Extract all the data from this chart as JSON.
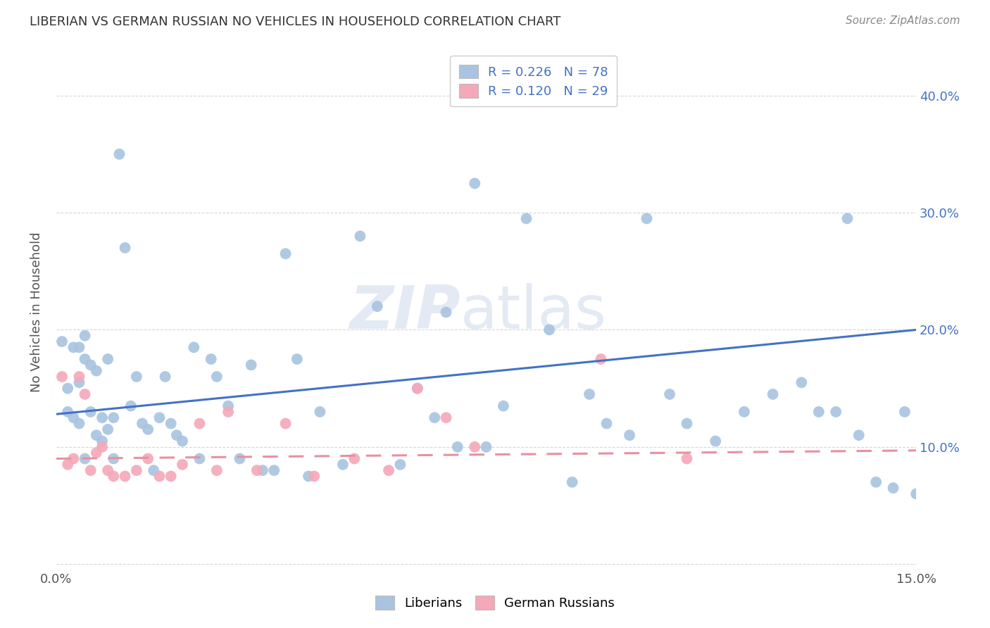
{
  "title": "LIBERIAN VS GERMAN RUSSIAN NO VEHICLES IN HOUSEHOLD CORRELATION CHART",
  "source": "Source: ZipAtlas.com",
  "ylabel": "No Vehicles in Household",
  "xlim": [
    0.0,
    0.15
  ],
  "ylim": [
    -0.005,
    0.435
  ],
  "liberian_color": "#a8c4e0",
  "german_russian_color": "#f4a8b8",
  "liberian_line_color": "#4472c4",
  "german_russian_line_color": "#e8909f",
  "watermark_zip": "ZIP",
  "watermark_atlas": "atlas",
  "legend1_text": "R = 0.226   N = 78",
  "legend2_text": "R = 0.120   N = 29",
  "bottom_legend1": "Liberians",
  "bottom_legend2": "German Russians",
  "liberian_x": [
    0.001,
    0.002,
    0.002,
    0.003,
    0.003,
    0.004,
    0.004,
    0.004,
    0.005,
    0.005,
    0.005,
    0.006,
    0.006,
    0.007,
    0.007,
    0.008,
    0.008,
    0.009,
    0.009,
    0.01,
    0.01,
    0.011,
    0.012,
    0.013,
    0.014,
    0.015,
    0.016,
    0.017,
    0.018,
    0.019,
    0.02,
    0.021,
    0.022,
    0.024,
    0.025,
    0.027,
    0.028,
    0.03,
    0.032,
    0.034,
    0.036,
    0.038,
    0.04,
    0.042,
    0.044,
    0.046,
    0.05,
    0.053,
    0.056,
    0.06,
    0.063,
    0.066,
    0.068,
    0.07,
    0.073,
    0.075,
    0.078,
    0.082,
    0.086,
    0.09,
    0.093,
    0.096,
    0.1,
    0.103,
    0.107,
    0.11,
    0.115,
    0.12,
    0.125,
    0.13,
    0.133,
    0.136,
    0.138,
    0.14,
    0.143,
    0.146,
    0.148,
    0.15
  ],
  "liberian_y": [
    0.19,
    0.13,
    0.15,
    0.185,
    0.125,
    0.155,
    0.12,
    0.185,
    0.175,
    0.195,
    0.09,
    0.17,
    0.13,
    0.165,
    0.11,
    0.125,
    0.105,
    0.175,
    0.115,
    0.125,
    0.09,
    0.35,
    0.27,
    0.135,
    0.16,
    0.12,
    0.115,
    0.08,
    0.125,
    0.16,
    0.12,
    0.11,
    0.105,
    0.185,
    0.09,
    0.175,
    0.16,
    0.135,
    0.09,
    0.17,
    0.08,
    0.08,
    0.265,
    0.175,
    0.075,
    0.13,
    0.085,
    0.28,
    0.22,
    0.085,
    0.15,
    0.125,
    0.215,
    0.1,
    0.325,
    0.1,
    0.135,
    0.295,
    0.2,
    0.07,
    0.145,
    0.12,
    0.11,
    0.295,
    0.145,
    0.12,
    0.105,
    0.13,
    0.145,
    0.155,
    0.13,
    0.13,
    0.295,
    0.11,
    0.07,
    0.065,
    0.13,
    0.06
  ],
  "german_russian_x": [
    0.001,
    0.002,
    0.003,
    0.004,
    0.005,
    0.006,
    0.007,
    0.008,
    0.009,
    0.01,
    0.012,
    0.014,
    0.016,
    0.018,
    0.02,
    0.022,
    0.025,
    0.028,
    0.03,
    0.035,
    0.04,
    0.045,
    0.052,
    0.058,
    0.063,
    0.068,
    0.073,
    0.095,
    0.11
  ],
  "german_russian_y": [
    0.16,
    0.085,
    0.09,
    0.16,
    0.145,
    0.08,
    0.095,
    0.1,
    0.08,
    0.075,
    0.075,
    0.08,
    0.09,
    0.075,
    0.075,
    0.085,
    0.12,
    0.08,
    0.13,
    0.08,
    0.12,
    0.075,
    0.09,
    0.08,
    0.15,
    0.125,
    0.1,
    0.175,
    0.09
  ],
  "lib_trendline_x0": 0.0,
  "lib_trendline_x1": 0.15,
  "lib_trendline_y0": 0.128,
  "lib_trendline_y1": 0.2,
  "gr_trendline_x0": 0.0,
  "gr_trendline_x1": 0.15,
  "gr_trendline_y0": 0.09,
  "gr_trendline_y1": 0.097
}
